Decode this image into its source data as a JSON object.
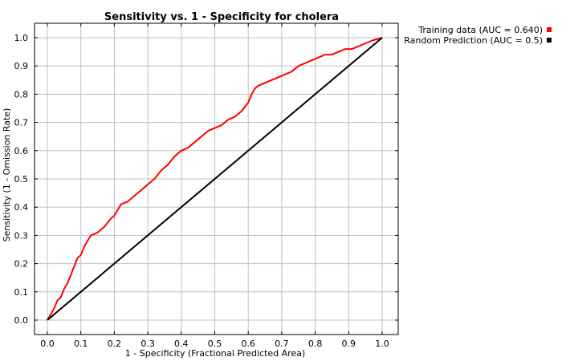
{
  "chart_data": {
    "type": "line",
    "title": "Sensitivity vs. 1 - Specificity for cholera",
    "xlabel": "1 - Specificity  (Fractional Predicted Area)",
    "ylabel": "Sensitivity  (1 - Omission Rate)",
    "xlim": [
      0,
      1
    ],
    "ylim": [
      0,
      1
    ],
    "xticks": [
      "0.0",
      "0.1",
      "0.2",
      "0.3",
      "0.4",
      "0.5",
      "0.6",
      "0.7",
      "0.8",
      "0.9",
      "1.0"
    ],
    "yticks": [
      "0.0",
      "0.1",
      "0.2",
      "0.3",
      "0.4",
      "0.5",
      "0.6",
      "0.7",
      "0.8",
      "0.9",
      "1.0"
    ],
    "grid": true,
    "legend_position": "top-right, outside plot",
    "series": [
      {
        "name": "Training data (AUC = 0.640)",
        "color": "#ff0000",
        "x": [
          0.0,
          0.01,
          0.02,
          0.03,
          0.04,
          0.05,
          0.06,
          0.07,
          0.08,
          0.09,
          0.1,
          0.11,
          0.12,
          0.13,
          0.15,
          0.17,
          0.19,
          0.2,
          0.21,
          0.22,
          0.24,
          0.26,
          0.28,
          0.3,
          0.32,
          0.34,
          0.36,
          0.38,
          0.4,
          0.42,
          0.44,
          0.46,
          0.48,
          0.5,
          0.52,
          0.54,
          0.56,
          0.58,
          0.6,
          0.61,
          0.62,
          0.63,
          0.65,
          0.67,
          0.69,
          0.71,
          0.73,
          0.75,
          0.77,
          0.79,
          0.81,
          0.83,
          0.85,
          0.87,
          0.89,
          0.91,
          0.93,
          0.95,
          0.97,
          1.0
        ],
        "y": [
          0.0,
          0.02,
          0.04,
          0.07,
          0.08,
          0.11,
          0.13,
          0.16,
          0.19,
          0.22,
          0.23,
          0.26,
          0.28,
          0.3,
          0.31,
          0.33,
          0.36,
          0.37,
          0.39,
          0.41,
          0.42,
          0.44,
          0.46,
          0.48,
          0.5,
          0.53,
          0.55,
          0.58,
          0.6,
          0.61,
          0.63,
          0.65,
          0.67,
          0.68,
          0.69,
          0.71,
          0.72,
          0.74,
          0.77,
          0.8,
          0.82,
          0.83,
          0.84,
          0.85,
          0.86,
          0.87,
          0.88,
          0.9,
          0.91,
          0.92,
          0.93,
          0.94,
          0.94,
          0.95,
          0.96,
          0.96,
          0.97,
          0.98,
          0.99,
          1.0
        ]
      },
      {
        "name": "Random Prediction (AUC = 0.5)",
        "color": "#000000",
        "x": [
          0.0,
          1.0
        ],
        "y": [
          0.0,
          1.0
        ]
      }
    ]
  }
}
